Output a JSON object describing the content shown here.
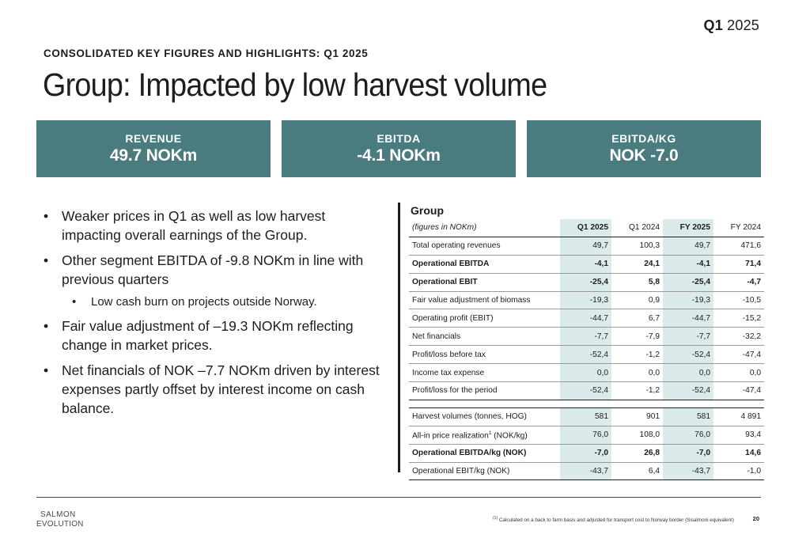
{
  "header": {
    "quarter_bold": "Q1",
    "quarter_year": "2025",
    "kicker": "CONSOLIDATED KEY FIGURES AND HIGHLIGHTS: Q1 2025",
    "title": "Group: Impacted by low harvest volume"
  },
  "kpis": [
    {
      "label": "REVENUE",
      "value": "49.7 NOKm"
    },
    {
      "label": "EBITDA",
      "value": "-4.1 NOKm"
    },
    {
      "label": "EBITDA/KG",
      "value": "NOK -7.0"
    }
  ],
  "bullets": [
    "Weaker prices in Q1 as well as low harvest impacting overall earnings of the Group.",
    "Other segment EBITDA of -9.8 NOKm in line with previous quarters",
    "Low cash burn on projects outside Norway.",
    "Fair value adjustment of –19.3 NOKm reflecting change in market prices.",
    "Net financials of NOK –7.7 NOKm driven by interest expenses partly offset by interest income on cash balance."
  ],
  "table": {
    "title": "Group",
    "unit_label": "(figures in NOKm)",
    "columns": [
      "Q1 2025",
      "Q1 2024",
      "FY 2025",
      "FY 2024"
    ],
    "rows": [
      {
        "label": "Total operating revenues",
        "values": [
          "49,7",
          "100,3",
          "49,7",
          "471,6"
        ]
      },
      {
        "label": "Operational EBITDA",
        "values": [
          "-4,1",
          "24,1",
          "-4,1",
          "71,4"
        ]
      },
      {
        "label": "Operational EBIT",
        "values": [
          "-25,4",
          "5,8",
          "-25,4",
          "-4,7"
        ]
      },
      {
        "label": "Fair value adjustment of biomass",
        "values": [
          "-19,3",
          "0,9",
          "-19,3",
          "-10,5"
        ]
      },
      {
        "label": "Operating profit (EBIT)",
        "values": [
          "-44,7",
          "6,7",
          "-44,7",
          "-15,2"
        ]
      },
      {
        "label": "Net financials",
        "values": [
          "-7,7",
          "-7,9",
          "-7,7",
          "-32,2"
        ]
      },
      {
        "label": "Profit/loss before tax",
        "values": [
          "-52,4",
          "-1,2",
          "-52,4",
          "-47,4"
        ]
      },
      {
        "label": "Income tax expense",
        "values": [
          "0,0",
          "0,0",
          "0,0",
          "0,0"
        ]
      },
      {
        "label": "Profit/loss for the period",
        "values": [
          "-52,4",
          "-1,2",
          "-52,4",
          "-47,4"
        ]
      },
      {
        "label": "Harvest volumes (tonnes, HOG)",
        "values": [
          "581",
          "901",
          "581",
          "4 891"
        ]
      },
      {
        "label": "All-in price realization",
        "label_sup": "1",
        "label_suffix": " (NOK/kg)",
        "values": [
          "76,0",
          "108,0",
          "76,0",
          "93,4"
        ]
      },
      {
        "label": "Operational EBITDA/kg (NOK)",
        "values": [
          "-7,0",
          "26,8",
          "-7,0",
          "14,6"
        ]
      },
      {
        "label": "Operational EBIT/kg (NOK)",
        "values": [
          "-43,7",
          "6,4",
          "-43,7",
          "-1,0"
        ]
      }
    ]
  },
  "footer": {
    "logo_line1": "SALMON",
    "logo_line2": "EVOLUTION",
    "footnote_marker": "(1)",
    "footnote": " Calculated on a back to farm basis and adjusted for transport cost to Norway border (Sisalmoni equivalent)",
    "page_number": "20"
  },
  "colors": {
    "accent": "#4a7b7f",
    "highlight": "#dbeaea",
    "text": "#1d1d1b"
  }
}
